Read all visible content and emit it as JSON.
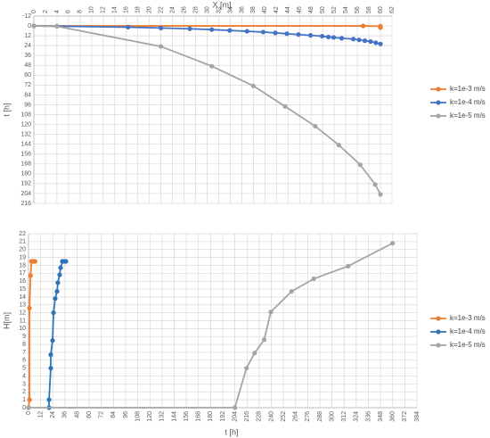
{
  "chart_data": [
    {
      "type": "line",
      "x_label": "X [m]",
      "y_label": "t [h]",
      "xlim": [
        0,
        62
      ],
      "xticks": [
        0,
        2,
        4,
        6,
        8,
        10,
        12,
        14,
        16,
        18,
        20,
        22,
        24,
        26,
        28,
        30,
        32,
        34,
        36,
        38,
        40,
        42,
        44,
        46,
        48,
        50,
        52,
        54,
        56,
        58,
        60,
        62
      ],
      "ylim": [
        -12,
        216
      ],
      "yticks": [
        -12,
        0,
        12,
        24,
        36,
        48,
        60,
        72,
        84,
        96,
        108,
        120,
        132,
        144,
        156,
        168,
        180,
        192,
        204,
        216
      ],
      "y_inverted": true,
      "x_axis_position": "top",
      "grid": true,
      "legend": "right",
      "series": [
        {
          "name": "k=1e-3 m/s",
          "color": "#ED7D31",
          "x": [
            0,
            57,
            60,
            60,
            60
          ],
          "values": [
            0,
            0,
            0.3,
            1,
            2
          ]
        },
        {
          "name": "k=1e-4 m/s",
          "color": "#4472C4",
          "x": [
            0,
            4,
            16.3,
            22,
            27,
            30.8,
            33.9,
            36.9,
            39.7,
            41.8,
            43.8,
            45.8,
            47.9,
            49.9,
            51,
            51.9,
            53.3,
            55.3,
            56.3,
            57.3,
            58.3,
            59.2,
            60
          ],
          "values": [
            0,
            0.3,
            1.5,
            2.5,
            3.5,
            4.5,
            5.5,
            6.5,
            7.5,
            8.5,
            9.5,
            10.5,
            11.5,
            12.5,
            13.5,
            14,
            15,
            16,
            17,
            18,
            19,
            20.5,
            22
          ]
        },
        {
          "name": "k=1e-5 m/s",
          "color": "#A5A5A5",
          "x": [
            0,
            4,
            22,
            30.8,
            38,
            43.5,
            48.7,
            52.8,
            56.5,
            59.1,
            60
          ],
          "values": [
            0,
            0.5,
            25,
            49,
            73,
            98,
            122,
            145,
            169,
            193,
            205
          ]
        }
      ]
    },
    {
      "type": "line",
      "x_label": "t [h]",
      "y_label": "H[m]",
      "xlim": [
        0,
        384
      ],
      "xticks": [
        0,
        12,
        24,
        36,
        48,
        60,
        72,
        84,
        96,
        108,
        120,
        132,
        144,
        156,
        168,
        180,
        192,
        204,
        216,
        228,
        240,
        252,
        264,
        276,
        288,
        300,
        312,
        324,
        336,
        348,
        360,
        372,
        384
      ],
      "ylim": [
        0,
        22
      ],
      "yticks": [
        0,
        1,
        2,
        3,
        4,
        5,
        6,
        7,
        8,
        9,
        10,
        11,
        12,
        13,
        14,
        15,
        16,
        17,
        18,
        19,
        20,
        21,
        22
      ],
      "y_inverted": false,
      "x_axis_position": "bottom",
      "grid": true,
      "legend": "right",
      "series": [
        {
          "name": "k=1e-3 m/s",
          "color": "#ED7D31",
          "x": [
            0,
            1,
            1,
            2,
            3,
            5,
            6.5
          ],
          "values": [
            0,
            1,
            12.6,
            16.7,
            18.5,
            18.5,
            18.5
          ]
        },
        {
          "name": "k=1e-4 m/s",
          "color": "#2E75B6",
          "x": [
            20.3,
            20.3,
            22,
            22,
            23.8,
            24.7,
            26.4,
            28.2,
            29,
            30.8,
            31.7,
            33.5,
            35.2,
            37
          ],
          "values": [
            0,
            1,
            5,
            6.7,
            8.5,
            12,
            13.8,
            14.7,
            15.8,
            16.8,
            17.7,
            18.5,
            18.5,
            18.5
          ]
        },
        {
          "name": "k=1e-5 m/s",
          "color": "#A5A5A5",
          "x": [
            0,
            204,
            215.5,
            223.5,
            233,
            239.5,
            260,
            282,
            316,
            360
          ],
          "values": [
            0,
            0,
            5,
            6.9,
            8.6,
            12.1,
            14.7,
            16.3,
            17.9,
            20.8
          ]
        }
      ]
    }
  ]
}
